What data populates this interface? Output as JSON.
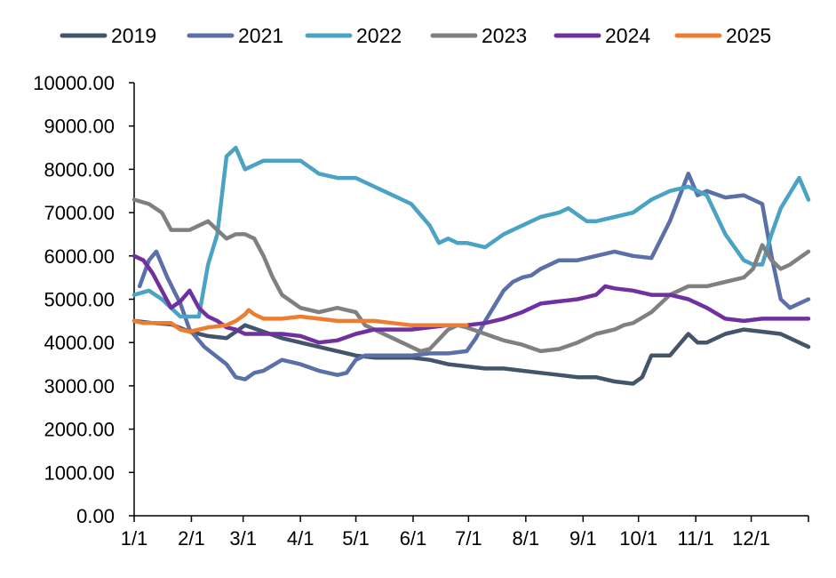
{
  "chart_data": {
    "type": "line",
    "title": "",
    "xlabel": "",
    "ylabel": "",
    "x_ticks": [
      "1/1",
      "2/1",
      "3/1",
      "4/1",
      "5/1",
      "6/1",
      "7/1",
      "8/1",
      "9/1",
      "10/1",
      "11/1",
      "12/1"
    ],
    "y_ticks": [
      "0.00",
      "1000.00",
      "2000.00",
      "3000.00",
      "4000.00",
      "5000.00",
      "6000.00",
      "7000.00",
      "8000.00",
      "9000.00",
      "10000.00"
    ],
    "ylim": [
      0,
      10000
    ],
    "xlim_days": [
      0,
      365
    ],
    "grid": false,
    "legend_position": "top",
    "series": [
      {
        "name": "2019",
        "color": "#44546A",
        "x": [
          0,
          10,
          20,
          30,
          40,
          50,
          60,
          70,
          80,
          90,
          100,
          110,
          120,
          130,
          140,
          150,
          160,
          170,
          180,
          190,
          200,
          210,
          220,
          230,
          240,
          250,
          260,
          270,
          275,
          280,
          290,
          300,
          305,
          310,
          320,
          330,
          340,
          350,
          365
        ],
        "y": [
          4500,
          4450,
          4420,
          4250,
          4150,
          4100,
          4400,
          4250,
          4100,
          4000,
          3900,
          3800,
          3700,
          3650,
          3650,
          3650,
          3600,
          3500,
          3450,
          3400,
          3400,
          3350,
          3300,
          3250,
          3200,
          3200,
          3100,
          3050,
          3200,
          3700,
          3700,
          4200,
          4000,
          4000,
          4200,
          4300,
          4250,
          4200,
          3900
        ]
      },
      {
        "name": "2021",
        "color": "#5B6FA8",
        "x": [
          3,
          8,
          12,
          18,
          25,
          30,
          38,
          50,
          55,
          60,
          65,
          70,
          80,
          90,
          100,
          110,
          115,
          120,
          125,
          130,
          140,
          150,
          160,
          170,
          180,
          185,
          190,
          200,
          205,
          210,
          215,
          220,
          230,
          240,
          250,
          260,
          270,
          280,
          290,
          300,
          305,
          310,
          320,
          330,
          340,
          345,
          350,
          355,
          365
        ],
        "y": [
          5300,
          5900,
          6100,
          5500,
          4900,
          4300,
          3900,
          3500,
          3200,
          3150,
          3300,
          3350,
          3600,
          3500,
          3350,
          3250,
          3300,
          3600,
          3700,
          3700,
          3700,
          3700,
          3750,
          3750,
          3800,
          4100,
          4500,
          5200,
          5400,
          5500,
          5550,
          5700,
          5900,
          5900,
          6000,
          6100,
          6000,
          5950,
          6800,
          7900,
          7400,
          7500,
          7350,
          7400,
          7200,
          6000,
          5000,
          4800,
          5000
        ]
      },
      {
        "name": "2022",
        "color": "#4BA3C3",
        "x": [
          0,
          8,
          15,
          25,
          35,
          40,
          45,
          50,
          55,
          60,
          70,
          80,
          90,
          100,
          110,
          120,
          130,
          140,
          150,
          160,
          165,
          170,
          175,
          180,
          190,
          200,
          210,
          220,
          230,
          235,
          245,
          250,
          260,
          270,
          280,
          290,
          300,
          305,
          310,
          320,
          325,
          330,
          335,
          340,
          345,
          350,
          360,
          365
        ],
        "y": [
          5100,
          5200,
          5000,
          4600,
          4600,
          5800,
          6500,
          8300,
          8500,
          8000,
          8200,
          8200,
          8200,
          7900,
          7800,
          7800,
          7600,
          7400,
          7200,
          6700,
          6300,
          6400,
          6300,
          6300,
          6200,
          6500,
          6700,
          6900,
          7000,
          7100,
          6800,
          6800,
          6900,
          7000,
          7300,
          7500,
          7600,
          7500,
          7400,
          6500,
          6200,
          5900,
          5800,
          5800,
          6500,
          7100,
          7800,
          7300
        ]
      },
      {
        "name": "2023",
        "color": "#808080",
        "x": [
          0,
          8,
          15,
          20,
          30,
          40,
          45,
          50,
          55,
          60,
          65,
          70,
          75,
          80,
          90,
          100,
          110,
          120,
          125,
          130,
          140,
          150,
          155,
          160,
          170,
          175,
          180,
          190,
          200,
          210,
          220,
          230,
          240,
          250,
          260,
          265,
          270,
          280,
          290,
          300,
          310,
          320,
          330,
          335,
          340,
          345,
          350,
          355,
          365
        ],
        "y": [
          7300,
          7200,
          7000,
          6600,
          6600,
          6800,
          6600,
          6400,
          6500,
          6500,
          6400,
          6000,
          5500,
          5100,
          4800,
          4700,
          4800,
          4700,
          4400,
          4300,
          4100,
          3900,
          3800,
          3850,
          4300,
          4400,
          4350,
          4200,
          4050,
          3950,
          3800,
          3850,
          4000,
          4200,
          4300,
          4400,
          4450,
          4700,
          5100,
          5300,
          5300,
          5400,
          5500,
          5700,
          6250,
          5900,
          5700,
          5800,
          6100
        ]
      },
      {
        "name": "2024",
        "color": "#7030A0",
        "x": [
          0,
          5,
          10,
          15,
          20,
          25,
          30,
          35,
          40,
          45,
          50,
          55,
          60,
          70,
          80,
          90,
          100,
          110,
          120,
          130,
          140,
          150,
          160,
          170,
          180,
          190,
          200,
          210,
          220,
          230,
          240,
          245,
          250,
          255,
          260,
          270,
          280,
          290,
          300,
          310,
          320,
          330,
          340,
          350,
          365
        ],
        "y": [
          6000,
          5900,
          5600,
          5200,
          4800,
          4950,
          5200,
          4800,
          4600,
          4500,
          4350,
          4300,
          4200,
          4200,
          4200,
          4150,
          4000,
          4050,
          4200,
          4300,
          4300,
          4300,
          4350,
          4400,
          4400,
          4450,
          4550,
          4700,
          4900,
          4950,
          5000,
          5050,
          5100,
          5300,
          5250,
          5200,
          5100,
          5100,
          5000,
          4800,
          4550,
          4500,
          4550,
          4550,
          4550
        ]
      },
      {
        "name": "2025",
        "color": "#ED7D31",
        "x": [
          0,
          5,
          10,
          20,
          25,
          30,
          40,
          50,
          55,
          60,
          62,
          65,
          70,
          80,
          90,
          100,
          110,
          120,
          130,
          140,
          150,
          160,
          170,
          180
        ],
        "y": [
          4500,
          4450,
          4450,
          4450,
          4300,
          4250,
          4350,
          4400,
          4500,
          4650,
          4750,
          4650,
          4550,
          4550,
          4600,
          4550,
          4500,
          4500,
          4500,
          4450,
          4400,
          4400,
          4400,
          4400
        ]
      }
    ]
  }
}
